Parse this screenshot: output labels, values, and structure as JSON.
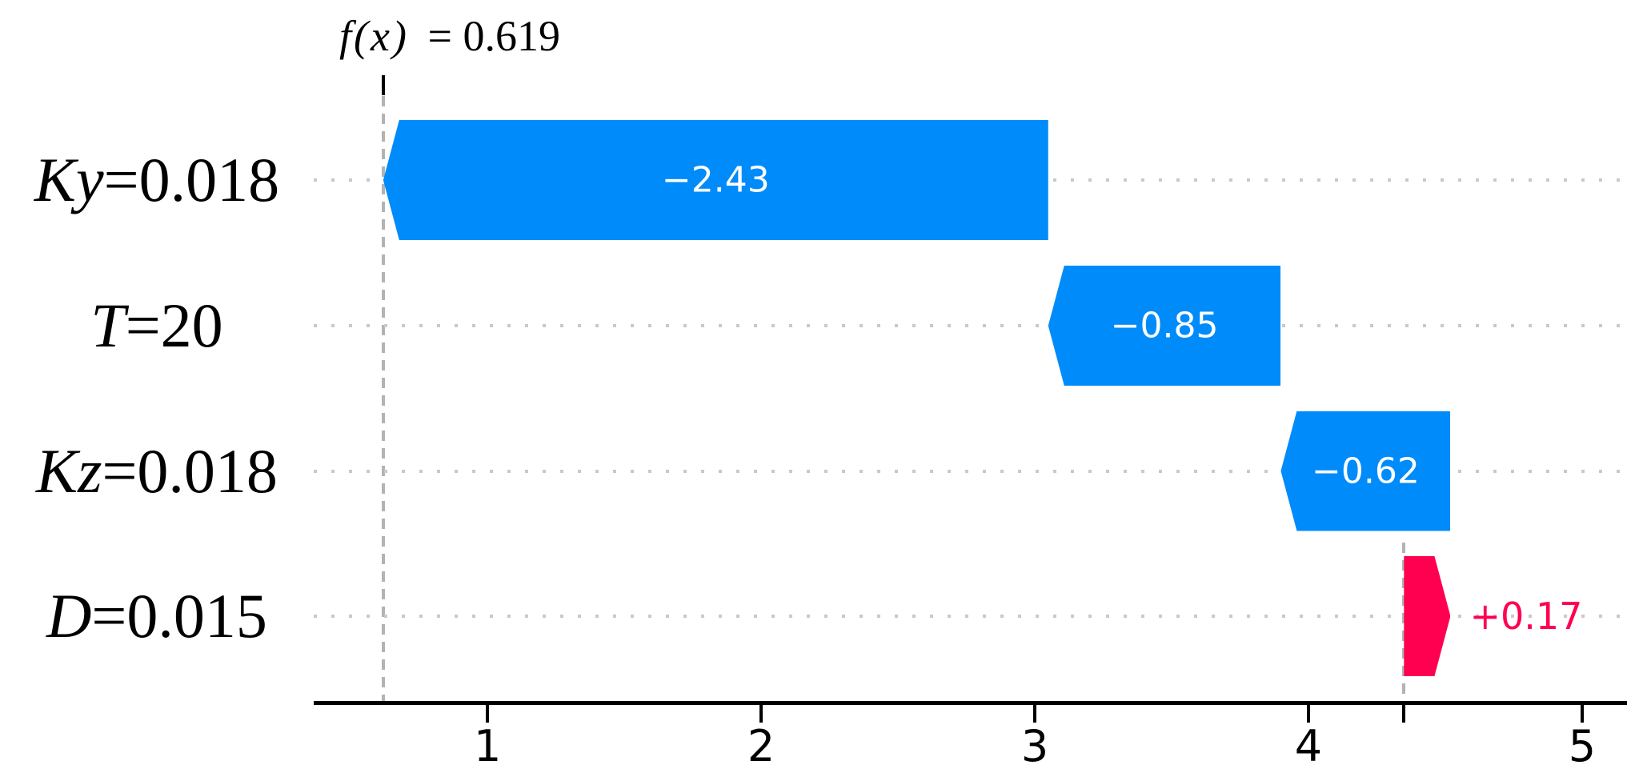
{
  "chart_data": {
    "type": "bar",
    "subtype": "shap-waterfall",
    "orientation": "horizontal",
    "fx_label": {
      "expr": "f(x)",
      "eq_text": "= 0.619",
      "value": 0.619
    },
    "base_value": 4.349,
    "features": [
      {
        "name": "Ky",
        "eq_value": "=0.018",
        "label": "Ky=0.018",
        "contribution": -2.43,
        "contribution_label": "−2.43",
        "start": 3.049,
        "end": 0.619
      },
      {
        "name": "T",
        "eq_value": "=20",
        "label": "T=20",
        "contribution": -0.85,
        "contribution_label": "−0.85",
        "start": 3.899,
        "end": 3.049
      },
      {
        "name": "Kz",
        "eq_value": "=0.018",
        "label": "Kz=0.018",
        "contribution": -0.62,
        "contribution_label": "−0.62",
        "start": 4.519,
        "end": 3.899
      },
      {
        "name": "D",
        "eq_value": "=0.015",
        "label": "D=0.015",
        "contribution": 0.17,
        "contribution_label": "+0.17",
        "start": 4.349,
        "end": 4.519
      }
    ],
    "x_ticks": [
      1,
      2,
      3,
      4,
      5
    ],
    "x_tick_labels": [
      "1",
      "2",
      "3",
      "4",
      "5"
    ],
    "xlim": [
      0.365,
      5.164
    ],
    "grid": "dotted-horizontal-per-row",
    "legend": "none",
    "colors": {
      "positive": "#ff0051",
      "negative": "#008bfb",
      "grid": "#c9c9c9",
      "dashed_line": "#b3b3b3",
      "axis": "#000000",
      "bar_label": "#ffffff"
    }
  }
}
